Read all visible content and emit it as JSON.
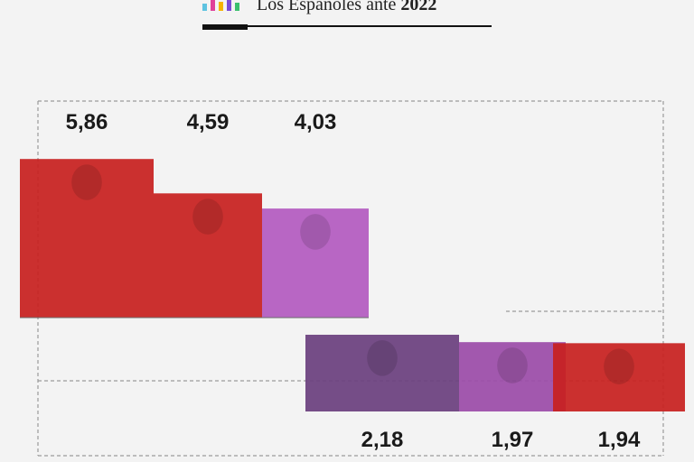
{
  "header": {
    "brand_prefix": "Los Españoles ante",
    "brand_year": "2022",
    "logo_colors": [
      "#5ec3e0",
      "#e0409a",
      "#f5b400",
      "#7a4bd6",
      "#3bbf6e"
    ]
  },
  "chart_data": {
    "type": "bar",
    "categories": [
      "",
      "",
      "",
      "",
      "",
      ""
    ],
    "values": [
      5.86,
      4.59,
      4.03,
      2.18,
      1.97,
      1.94
    ],
    "value_labels": [
      "5,86",
      "4,59",
      "4,03",
      "2,18",
      "1,97",
      "1,94"
    ],
    "bar_colors": [
      "#c8201e",
      "#c8201e",
      "#b35ac0",
      "#6a3f7e",
      "#9b4ba8",
      "#c8201e"
    ],
    "title": "",
    "xlabel": "",
    "ylabel": "",
    "grid": true
  }
}
